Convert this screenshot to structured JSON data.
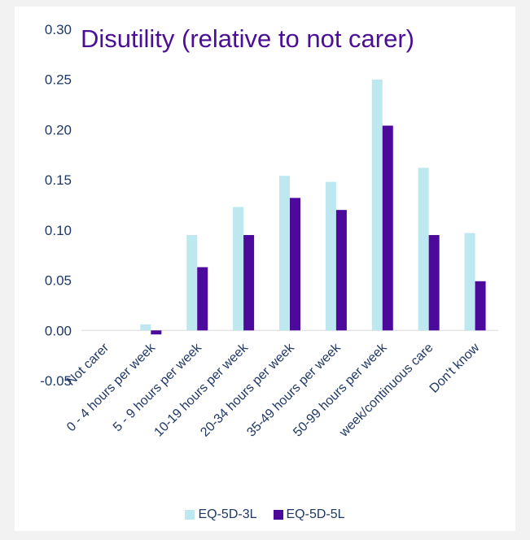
{
  "chart_data": {
    "type": "bar",
    "title": "Disutility (relative to not carer)",
    "categories": [
      "Not carer",
      "0 - 4 hours per week",
      "5 - 9 hours per week",
      "10-19 hours per week",
      "20-34 hours per week",
      "35-49 hours per week",
      "50-99 hours per week",
      "week/continuous care",
      "Don't know"
    ],
    "series": [
      {
        "name": "EQ-5D-3L",
        "color": "#bde8f0",
        "values": [
          0.0,
          0.006,
          0.095,
          0.123,
          0.154,
          0.148,
          0.25,
          0.162,
          0.097
        ]
      },
      {
        "name": "EQ-5D-5L",
        "color": "#4b0a9c",
        "values": [
          0.0,
          -0.004,
          0.063,
          0.095,
          0.132,
          0.12,
          0.204,
          0.095,
          0.049
        ]
      }
    ],
    "ylim": [
      -0.05,
      0.3
    ],
    "yticks": [
      "0.30",
      "0.25",
      "0.20",
      "0.15",
      "0.10",
      "0.05",
      "0.00",
      "-0.05"
    ],
    "xlabel": "",
    "ylabel": "",
    "legend_position": "bottom",
    "grid": false
  }
}
